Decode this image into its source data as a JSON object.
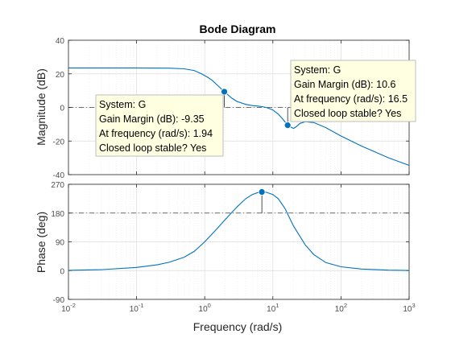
{
  "chart_data": {
    "type": "line",
    "title": "Bode Diagram",
    "xlabel": "Frequency  (rad/s)",
    "x_scale": "log",
    "xlim": [
      0.01,
      1000
    ],
    "x_ticks": [
      0.01,
      0.1,
      1,
      10,
      100,
      1000
    ],
    "x_tick_labels": [
      {
        "base": "10",
        "exp": "-2"
      },
      {
        "base": "10",
        "exp": "-1"
      },
      {
        "base": "10",
        "exp": "0"
      },
      {
        "base": "10",
        "exp": "1"
      },
      {
        "base": "10",
        "exp": "2"
      },
      {
        "base": "10",
        "exp": "3"
      }
    ],
    "grid": true,
    "color": "#0072bd",
    "panels": [
      {
        "ylabel": "Magnitude (dB)",
        "ylim": [
          -40,
          40
        ],
        "yticks": [
          -40,
          -20,
          0,
          20,
          40
        ],
        "ytick_labels": [
          "-40",
          "-20",
          "0",
          "20",
          "40"
        ],
        "reference_line": 0,
        "series": [
          {
            "x": [
              0.01,
              0.1,
              0.3,
              0.5,
              0.7,
              0.9,
              1.1,
              1.3,
              1.6,
              1.94,
              2.5,
              3,
              4,
              5,
              6,
              7,
              8,
              10,
              12,
              14,
              16.5,
              18,
              20,
              22,
              25,
              30,
              40,
              60,
              100,
              200,
              500,
              1000
            ],
            "y": [
              23.5,
              23.5,
              23.4,
              23,
              22,
              20,
              18,
              16,
              12.5,
              9.35,
              5.5,
              3.5,
              1.8,
              1.1,
              0.8,
              0.5,
              0,
              -1.5,
              -4,
              -7,
              -10.6,
              -11.5,
              -12.5,
              -11.5,
              -9.5,
              -8.5,
              -9,
              -12,
              -17,
              -23,
              -30,
              -34.5
            ]
          }
        ],
        "markers": [
          {
            "x": 1.94,
            "y": 9.35
          },
          {
            "x": 16.5,
            "y": -10.6
          }
        ]
      },
      {
        "ylabel": "Phase (deg)",
        "ylim": [
          -90,
          270
        ],
        "yticks": [
          -90,
          0,
          90,
          180,
          270
        ],
        "ytick_labels": [
          "-90",
          "0",
          "90",
          "180",
          "270"
        ],
        "reference_line": 180,
        "series": [
          {
            "x": [
              0.01,
              0.03,
              0.1,
              0.2,
              0.3,
              0.5,
              0.7,
              1,
              1.5,
              2,
              3,
              4,
              5,
              6,
              7,
              8,
              10,
              12,
              15,
              20,
              30,
              40,
              60,
              100,
              200,
              500,
              1000
            ],
            "y": [
              1,
              3,
              10,
              18,
              26,
              42,
              60,
              90,
              130,
              160,
              200,
              225,
              238,
              244,
              246,
              245,
              238,
              225,
              195,
              140,
              80,
              50,
              25,
              12,
              5,
              1.5,
              0.5
            ]
          }
        ],
        "markers": [
          {
            "x": 6.9,
            "y": 246
          }
        ]
      }
    ],
    "datatips": [
      {
        "panel": 0,
        "lines": [
          "System: G",
          "Gain Margin (dB): -9.35",
          "At frequency (rad/s): 1.94",
          "Closed loop stable? Yes"
        ]
      },
      {
        "panel": 0,
        "lines": [
          "System: G",
          "Gain Margin (dB): 10.6",
          "At frequency (rad/s): 16.5",
          "Closed loop stable? Yes"
        ]
      }
    ]
  }
}
